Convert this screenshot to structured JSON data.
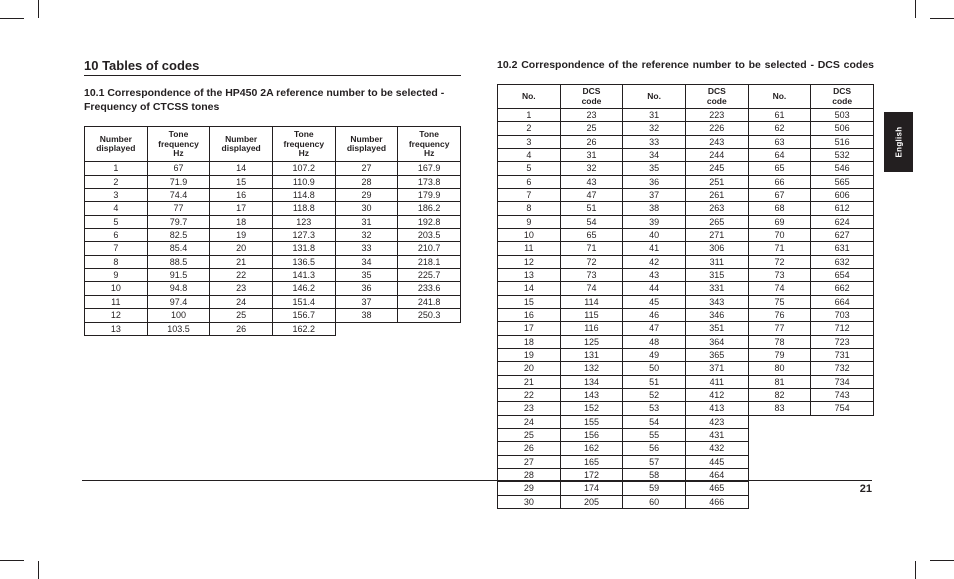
{
  "section_title": "10 Tables of codes",
  "left": {
    "heading": "10.1 Correspondence of the HP450 2A reference number to be selected - Frequency of CTCSS tones",
    "headers": [
      "Number displayed",
      "Tone frequency Hz",
      "Number displayed",
      "Tone frequency Hz",
      "Number displayed",
      "Tone frequency Hz"
    ],
    "rows": [
      [
        "1",
        "67",
        "14",
        "107.2",
        "27",
        "167.9"
      ],
      [
        "2",
        "71.9",
        "15",
        "110.9",
        "28",
        "173.8"
      ],
      [
        "3",
        "74.4",
        "16",
        "114.8",
        "29",
        "179.9"
      ],
      [
        "4",
        "77",
        "17",
        "118.8",
        "30",
        "186.2"
      ],
      [
        "5",
        "79.7",
        "18",
        "123",
        "31",
        "192.8"
      ],
      [
        "6",
        "82.5",
        "19",
        "127.3",
        "32",
        "203.5"
      ],
      [
        "7",
        "85.4",
        "20",
        "131.8",
        "33",
        "210.7"
      ],
      [
        "8",
        "88.5",
        "21",
        "136.5",
        "34",
        "218.1"
      ],
      [
        "9",
        "91.5",
        "22",
        "141.3",
        "35",
        "225.7"
      ],
      [
        "10",
        "94.8",
        "23",
        "146.2",
        "36",
        "233.6"
      ],
      [
        "11",
        "97.4",
        "24",
        "151.4",
        "37",
        "241.8"
      ],
      [
        "12",
        "100",
        "25",
        "156.7",
        "38",
        "250.3"
      ],
      [
        "13",
        "103.5",
        "26",
        "162.2",
        "",
        ""
      ]
    ]
  },
  "right": {
    "heading": "10.2 Correspondence of the reference number to be selected - DCS codes",
    "headers": [
      "No.",
      "DCS code",
      "No.",
      "DCS code",
      "No.",
      "DCS code"
    ],
    "rows": [
      [
        "1",
        "23",
        "31",
        "223",
        "61",
        "503"
      ],
      [
        "2",
        "25",
        "32",
        "226",
        "62",
        "506"
      ],
      [
        "3",
        "26",
        "33",
        "243",
        "63",
        "516"
      ],
      [
        "4",
        "31",
        "34",
        "244",
        "64",
        "532"
      ],
      [
        "5",
        "32",
        "35",
        "245",
        "65",
        "546"
      ],
      [
        "6",
        "43",
        "36",
        "251",
        "66",
        "565"
      ],
      [
        "7",
        "47",
        "37",
        "261",
        "67",
        "606"
      ],
      [
        "8",
        "51",
        "38",
        "263",
        "68",
        "612"
      ],
      [
        "9",
        "54",
        "39",
        "265",
        "69",
        "624"
      ],
      [
        "10",
        "65",
        "40",
        "271",
        "70",
        "627"
      ],
      [
        "11",
        "71",
        "41",
        "306",
        "71",
        "631"
      ],
      [
        "12",
        "72",
        "42",
        "311",
        "72",
        "632"
      ],
      [
        "13",
        "73",
        "43",
        "315",
        "73",
        "654"
      ],
      [
        "14",
        "74",
        "44",
        "331",
        "74",
        "662"
      ],
      [
        "15",
        "114",
        "45",
        "343",
        "75",
        "664"
      ],
      [
        "16",
        "115",
        "46",
        "346",
        "76",
        "703"
      ],
      [
        "17",
        "116",
        "47",
        "351",
        "77",
        "712"
      ],
      [
        "18",
        "125",
        "48",
        "364",
        "78",
        "723"
      ],
      [
        "19",
        "131",
        "49",
        "365",
        "79",
        "731"
      ],
      [
        "20",
        "132",
        "50",
        "371",
        "80",
        "732"
      ],
      [
        "21",
        "134",
        "51",
        "411",
        "81",
        "734"
      ],
      [
        "22",
        "143",
        "52",
        "412",
        "82",
        "743"
      ],
      [
        "23",
        "152",
        "53",
        "413",
        "83",
        "754"
      ],
      [
        "24",
        "155",
        "54",
        "423",
        "",
        ""
      ],
      [
        "25",
        "156",
        "55",
        "431",
        "",
        ""
      ],
      [
        "26",
        "162",
        "56",
        "432",
        "",
        ""
      ],
      [
        "27",
        "165",
        "57",
        "445",
        "",
        ""
      ],
      [
        "28",
        "172",
        "58",
        "464",
        "",
        ""
      ],
      [
        "29",
        "174",
        "59",
        "465",
        "",
        ""
      ],
      [
        "30",
        "205",
        "60",
        "466",
        "",
        ""
      ]
    ]
  },
  "side_tab": "English",
  "page_number": "21",
  "colors": {
    "text": "#231f20",
    "bg": "#ffffff",
    "tab_bg": "#231f20",
    "tab_text": "#ffffff"
  }
}
